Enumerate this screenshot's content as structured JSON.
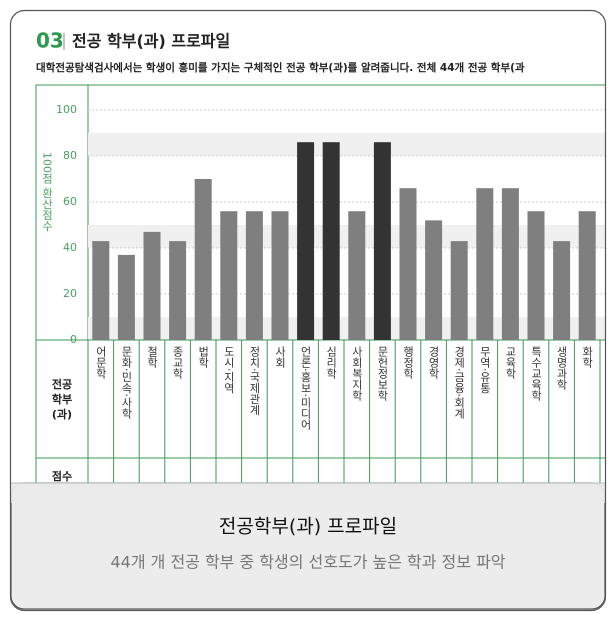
{
  "header": {
    "number": "03",
    "title": "전공 학부(과) 프로파일",
    "description": "대학전공탐색검사에서는 학생이 흥미를 가지는 구체적인 전공 학부(과)를 알려줍니다. 전체 44개 전공 학부(과"
  },
  "chart_data": {
    "type": "bar",
    "y_label": "100점 환산점수",
    "row_label": "전공 학부 (과)",
    "score_label": "점수",
    "categories": [
      "어문학",
      "문화·민속·사학",
      "철학",
      "종교학",
      "법학",
      "도시·지역",
      "정치·국제관계",
      "사회",
      "언론·홍보·미디어",
      "심리학",
      "사회복지학",
      "문헌정보학",
      "행정학",
      "경영학",
      "경제·금융·회계",
      "무역·유통",
      "교육학",
      "특수교육학",
      "생명과학",
      "화학"
    ],
    "values": [
      43,
      37,
      47,
      43,
      70,
      56,
      56,
      56,
      86,
      86,
      56,
      86,
      66,
      52,
      43,
      66,
      66,
      56,
      43,
      56
    ],
    "colors": [
      "#7f7f7f",
      "#7f7f7f",
      "#7f7f7f",
      "#7f7f7f",
      "#7f7f7f",
      "#7f7f7f",
      "#7f7f7f",
      "#7f7f7f",
      "#333333",
      "#333333",
      "#7f7f7f",
      "#333333",
      "#7f7f7f",
      "#7f7f7f",
      "#7f7f7f",
      "#7f7f7f",
      "#7f7f7f",
      "#7f7f7f",
      "#7f7f7f",
      "#7f7f7f"
    ],
    "ylim": [
      0,
      100
    ],
    "yticks": [
      0,
      20,
      40,
      60,
      80,
      100
    ],
    "grid": true
  },
  "overlay": {
    "title": "전공학부(과) 프로파일",
    "subtitle": "44개 개 전공 학부 중 학생의 선호도가 높은 학과 정보 파악"
  }
}
